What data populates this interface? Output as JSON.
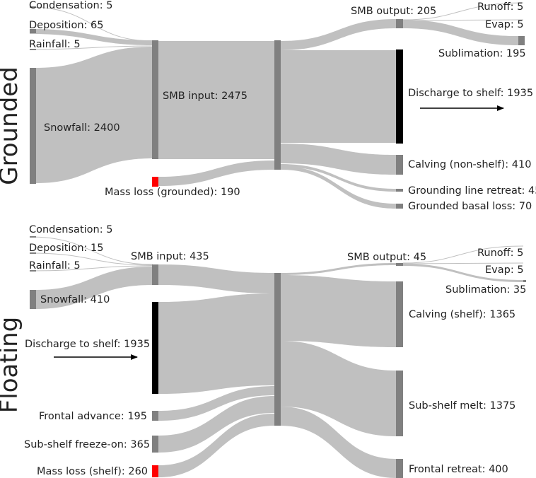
{
  "colors": {
    "flow": "#c0c0c0",
    "node": "#808080",
    "black_node": "#000000",
    "loss_node": "#ff0000",
    "text": "#222222"
  },
  "grounded": {
    "title": "Grounded",
    "labels": {
      "condensation": "Condensation: 5",
      "deposition": "Deposition: 65",
      "rainfall": "Rainfall: 5",
      "snowfall": "Snowfall: 2400",
      "smb_input": "SMB input: 2475",
      "mass_loss": "Mass loss (grounded): 190",
      "smb_output": "SMB output: 205",
      "runoff": "Runoff: 5",
      "evap": "Evap: 5",
      "sublimation": "Sublimation: 195",
      "discharge": "Discharge to shelf: 1935",
      "calving": "Calving (non-shelf): 410",
      "gl_retreat": "Grounding line retreat: 45",
      "basal_loss": "Grounded basal loss: 70"
    }
  },
  "floating": {
    "title": "Floating",
    "labels": {
      "condensation": "Condensation: 5",
      "deposition": "Deposition: 15",
      "rainfall": "Rainfall: 5",
      "snowfall": "Snowfall: 410",
      "smb_input": "SMB input: 435",
      "discharge": "Discharge to shelf: 1935",
      "frontal_advance": "Frontal advance: 195",
      "freeze_on": "Sub-shelf freeze-on: 365",
      "mass_loss": "Mass loss (shelf): 260",
      "smb_output": "SMB output: 45",
      "runoff": "Runoff: 5",
      "evap": "Evap: 5",
      "sublimation": "Sublimation: 35",
      "calving": "Calving (shelf): 1365",
      "sub_shelf_melt": "Sub-shelf melt: 1375",
      "frontal_retreat": "Frontal retreat: 400"
    }
  }
}
